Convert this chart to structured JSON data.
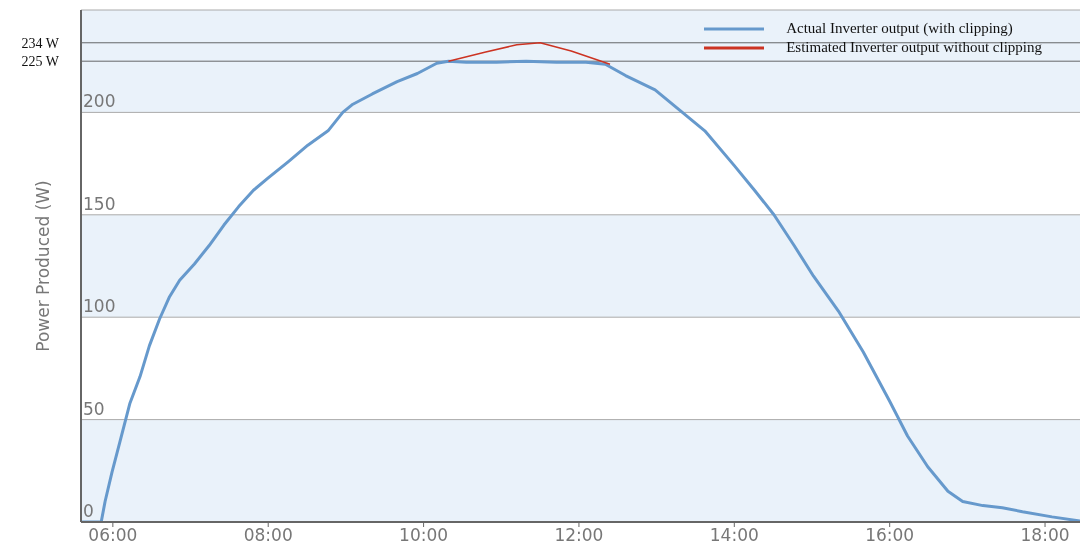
{
  "chart_data": {
    "type": "line",
    "ylabel": "Power Produced (W)",
    "xlim": [
      5.59,
      18.45
    ],
    "xticks": [
      {
        "value": 6,
        "label": "06:00"
      },
      {
        "value": 8,
        "label": "08:00"
      },
      {
        "value": 10,
        "label": "10:00"
      },
      {
        "value": 12,
        "label": "12:00"
      },
      {
        "value": 14,
        "label": "14:00"
      },
      {
        "value": 16,
        "label": "16:00"
      },
      {
        "value": 18,
        "label": "18:00"
      }
    ],
    "ylim": [
      0,
      250
    ],
    "yticks": [
      0,
      50,
      100,
      150,
      200
    ],
    "grid": "y",
    "legend": "top right",
    "marker": "none",
    "line_style": "solid",
    "ref_lines": [
      {
        "axis": "y",
        "value": 234,
        "label": "234 W",
        "color": "#444444"
      },
      {
        "axis": "y",
        "value": 225,
        "label": "225 W",
        "color": "#444444"
      }
    ],
    "series": [
      {
        "name": "Actual Inverter output (with clipping)",
        "color": "#6699cc",
        "x": [
          5.59,
          5.85,
          5.9,
          5.99,
          6.09,
          6.22,
          6.35,
          6.47,
          6.6,
          6.73,
          6.86,
          7.05,
          7.24,
          7.43,
          7.62,
          7.81,
          8.0,
          8.26,
          8.51,
          8.77,
          8.96,
          9.09,
          9.34,
          9.66,
          9.92,
          10.17,
          10.32,
          10.55,
          10.94,
          11.32,
          11.71,
          12.09,
          12.34,
          12.6,
          12.98,
          13.3,
          13.62,
          14.0,
          14.26,
          14.51,
          14.77,
          15.02,
          15.34,
          15.66,
          16.0,
          16.23,
          16.49,
          16.75,
          16.94,
          17.2,
          17.45,
          17.71,
          18.09,
          18.45
        ],
        "values": [
          0,
          0,
          10,
          24.5,
          39,
          58,
          71,
          86,
          99,
          110,
          118,
          126,
          135,
          145,
          154,
          162,
          168,
          176,
          184,
          191,
          200,
          204,
          209,
          215,
          219,
          224,
          225,
          224.5,
          224.5,
          225,
          224.5,
          224.5,
          223.5,
          218,
          211,
          201,
          191,
          174,
          162,
          150,
          135,
          120,
          103,
          83,
          59,
          42,
          27,
          15,
          10,
          8,
          7,
          5,
          2.5,
          0.5
        ]
      },
      {
        "name": "Estimated Inverter output without clipping",
        "color": "#cc3322",
        "x": [
          10.32,
          10.8,
          11.2,
          11.5,
          11.9,
          12.4
        ],
        "values": [
          225,
          229.5,
          233,
          234,
          230,
          223.5
        ]
      }
    ]
  }
}
